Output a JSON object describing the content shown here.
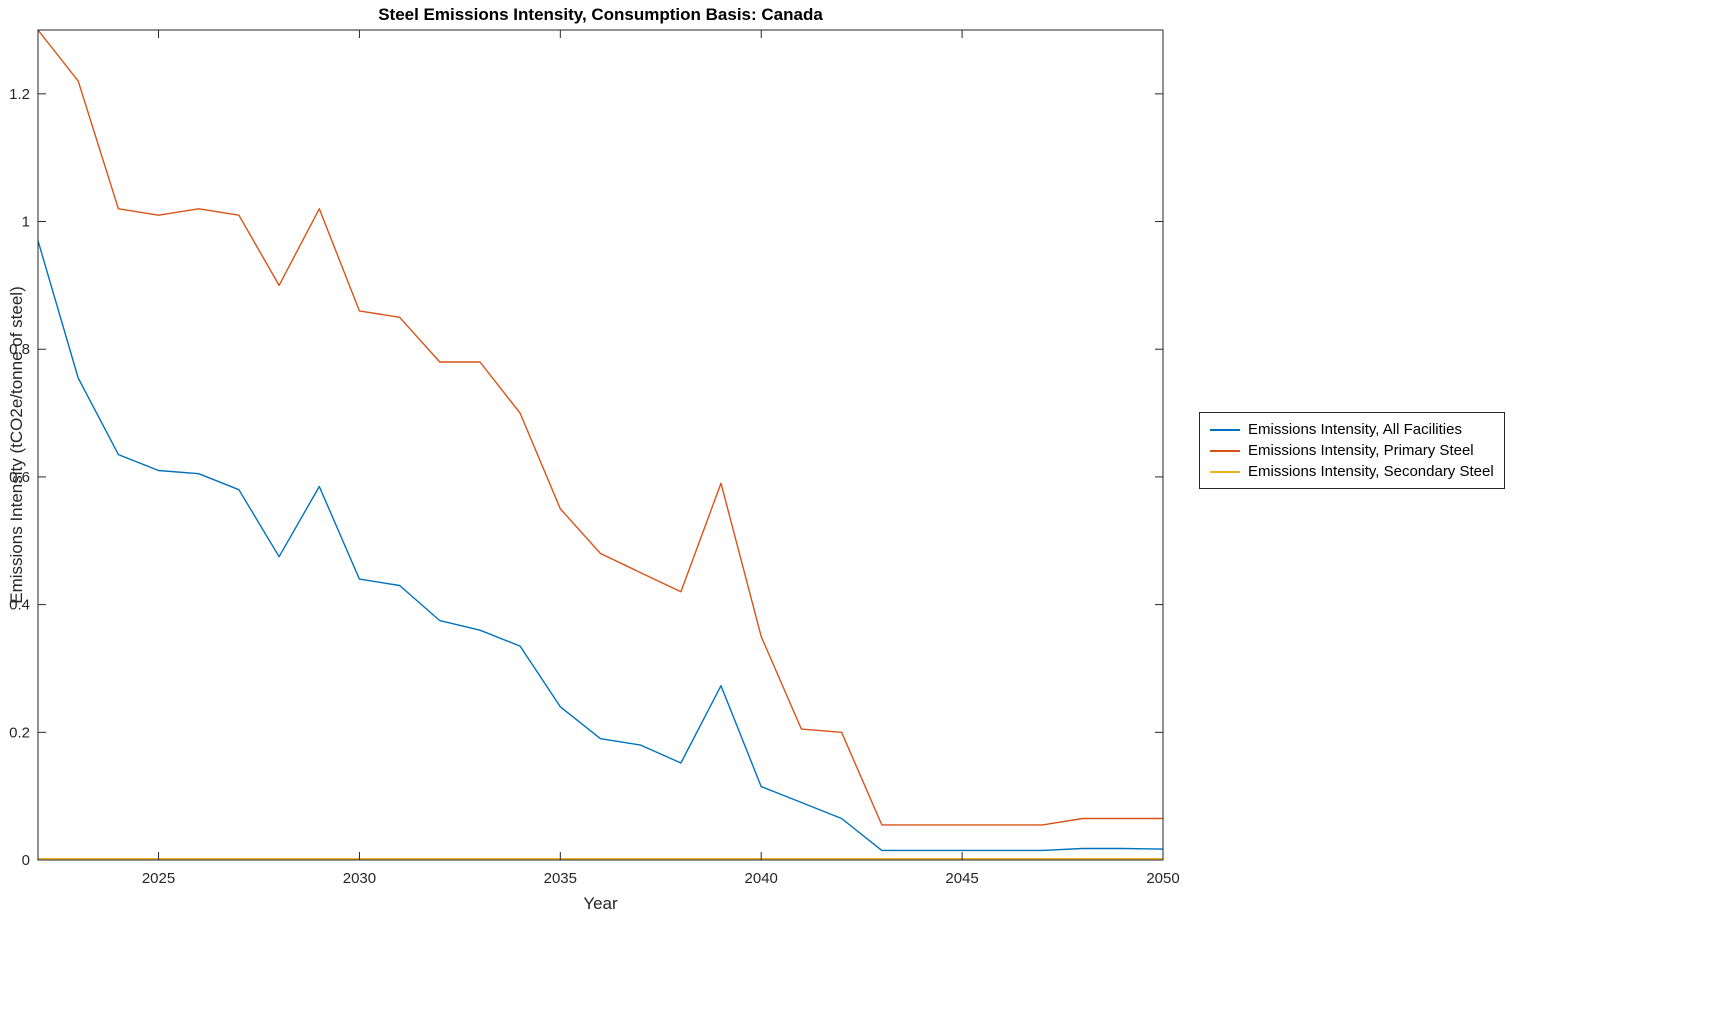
{
  "chart_data": {
    "type": "line",
    "title": "Steel Emissions Intensity, Consumption Basis: Canada",
    "xlabel": "Year",
    "ylabel": "Emissions Intensity (tCO2e/tonne of steel)",
    "xlim": [
      2022,
      2050
    ],
    "ylim": [
      0,
      1.3
    ],
    "xticks": [
      2025,
      2030,
      2035,
      2040,
      2045,
      2050
    ],
    "xtick_labels": [
      "2025",
      "2030",
      "2035",
      "2040",
      "2045",
      "2050"
    ],
    "yticks": [
      0,
      0.2,
      0.4,
      0.6,
      0.8,
      1,
      1.2
    ],
    "ytick_labels": [
      "0",
      "0.2",
      "0.4",
      "0.6",
      "0.8",
      "1",
      "1.2"
    ],
    "grid": false,
    "legend_position": "right-outside",
    "axis_color": "#262626",
    "x": [
      2022,
      2023,
      2024,
      2025,
      2026,
      2027,
      2028,
      2029,
      2030,
      2031,
      2032,
      2033,
      2034,
      2035,
      2036,
      2037,
      2038,
      2039,
      2040,
      2041,
      2042,
      2043,
      2044,
      2045,
      2046,
      2047,
      2048,
      2049,
      2050
    ],
    "series": [
      {
        "name": "Emissions Intensity, All Facilities",
        "color": "#0072BD",
        "values": [
          0.97,
          0.755,
          0.635,
          0.61,
          0.605,
          0.58,
          0.475,
          0.585,
          0.44,
          0.43,
          0.375,
          0.36,
          0.335,
          0.24,
          0.19,
          0.18,
          0.152,
          0.273,
          0.115,
          0.09,
          0.065,
          0.015,
          0.015,
          0.015,
          0.015,
          0.015,
          0.018,
          0.018,
          0.017
        ]
      },
      {
        "name": "Emissions Intensity, Primary Steel",
        "color": "#D95319",
        "values": [
          1.3,
          1.22,
          1.02,
          1.01,
          1.02,
          1.01,
          0.9,
          1.02,
          0.86,
          0.85,
          0.78,
          0.78,
          0.7,
          0.55,
          0.48,
          0.45,
          0.42,
          0.59,
          0.35,
          0.205,
          0.2,
          0.055,
          0.055,
          0.055,
          0.055,
          0.055,
          0.065,
          0.065,
          0.065
        ]
      },
      {
        "name": "Emissions Intensity, Secondary Steel",
        "color": "#EDB120",
        "values": [
          0.002,
          0.002,
          0.002,
          0.002,
          0.002,
          0.002,
          0.002,
          0.002,
          0.002,
          0.002,
          0.002,
          0.002,
          0.002,
          0.002,
          0.002,
          0.002,
          0.002,
          0.002,
          0.002,
          0.002,
          0.002,
          0.002,
          0.002,
          0.002,
          0.002,
          0.002,
          0.002,
          0.002,
          0.002
        ]
      }
    ]
  }
}
